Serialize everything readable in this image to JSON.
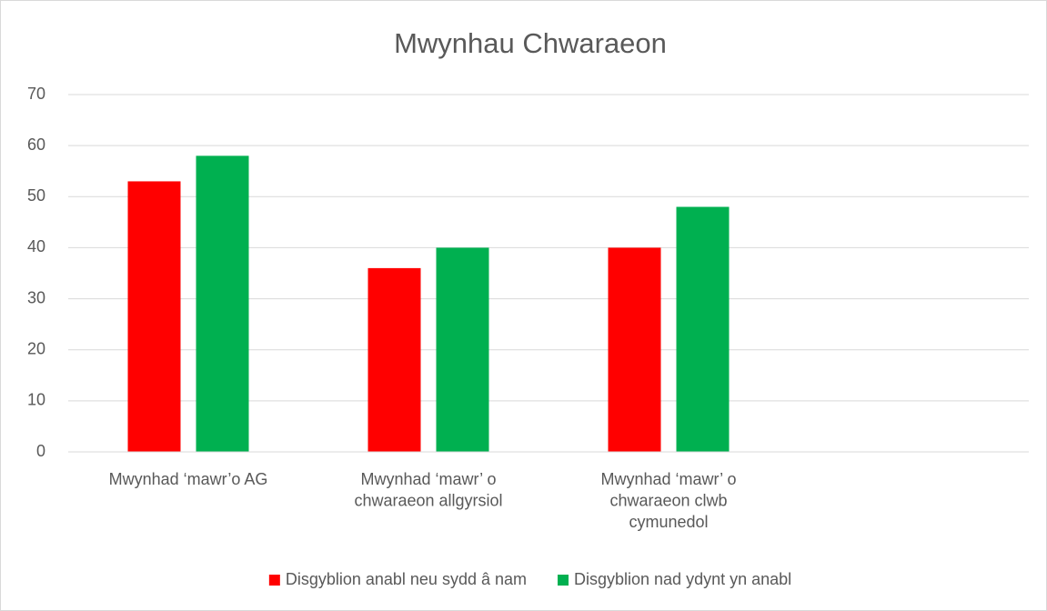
{
  "chart_data": {
    "type": "bar",
    "title": "Mwynhau Chwaraeon",
    "categories": [
      "Mwynhad ‘mawr’o AG",
      "Mwynhad ‘mawr’ o chwaraeon allgyrsiol",
      "Mwynhad ‘mawr’ o chwaraeon clwb cymunedol",
      null
    ],
    "series": [
      {
        "name": "Disgyblion anabl neu sydd â nam",
        "color": "#ff0000",
        "values": [
          53,
          36,
          40,
          null
        ]
      },
      {
        "name": "Disgyblion nad ydynt yn anabl",
        "color": "#00b050",
        "values": [
          58,
          40,
          48,
          null
        ]
      }
    ],
    "ylim": [
      0,
      70
    ],
    "yticks": [
      0,
      10,
      20,
      30,
      40,
      50,
      60,
      70
    ],
    "grid": true,
    "legend": "bottom"
  }
}
